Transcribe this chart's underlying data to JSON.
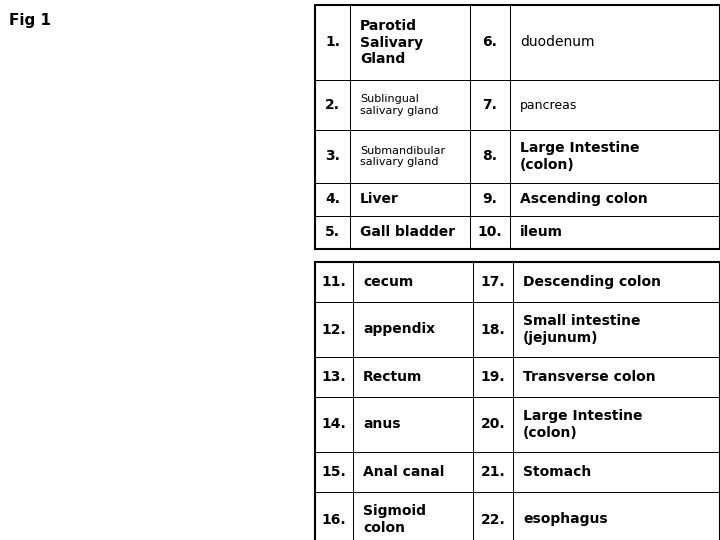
{
  "fig_label": "Fig 1",
  "table1_rows": [
    [
      "1.",
      "Parotid\nSalivary\nGland",
      "6.",
      "duodenum"
    ],
    [
      "2.",
      "Sublingual\nsalivary gland",
      "7.",
      "pancreas"
    ],
    [
      "3.",
      "Submandibular\nsalivary gland",
      "8.",
      "Large Intestine\n(colon)"
    ],
    [
      "4.",
      "Liver",
      "9.",
      "Ascending colon"
    ],
    [
      "5.",
      "Gall bladder",
      "10.",
      "ileum"
    ]
  ],
  "table2_rows": [
    [
      "11.",
      "cecum",
      "17.",
      "Descending colon"
    ],
    [
      "12.",
      "appendix",
      "18.",
      "Small intestine\n(jejunum)"
    ],
    [
      "13.",
      "Rectum",
      "19.",
      "Transverse colon"
    ],
    [
      "14.",
      "anus",
      "20.",
      "Large Intestine\n(colon)"
    ],
    [
      "15.",
      "Anal canal",
      "21.",
      "Stomach"
    ],
    [
      "16.",
      "Sigmoid\ncolon",
      "22.",
      "esophagus"
    ]
  ],
  "bg_color": "#ffffff",
  "border_color": "#000000",
  "text_color": "#000000",
  "img_bg": "#c8c8c8"
}
